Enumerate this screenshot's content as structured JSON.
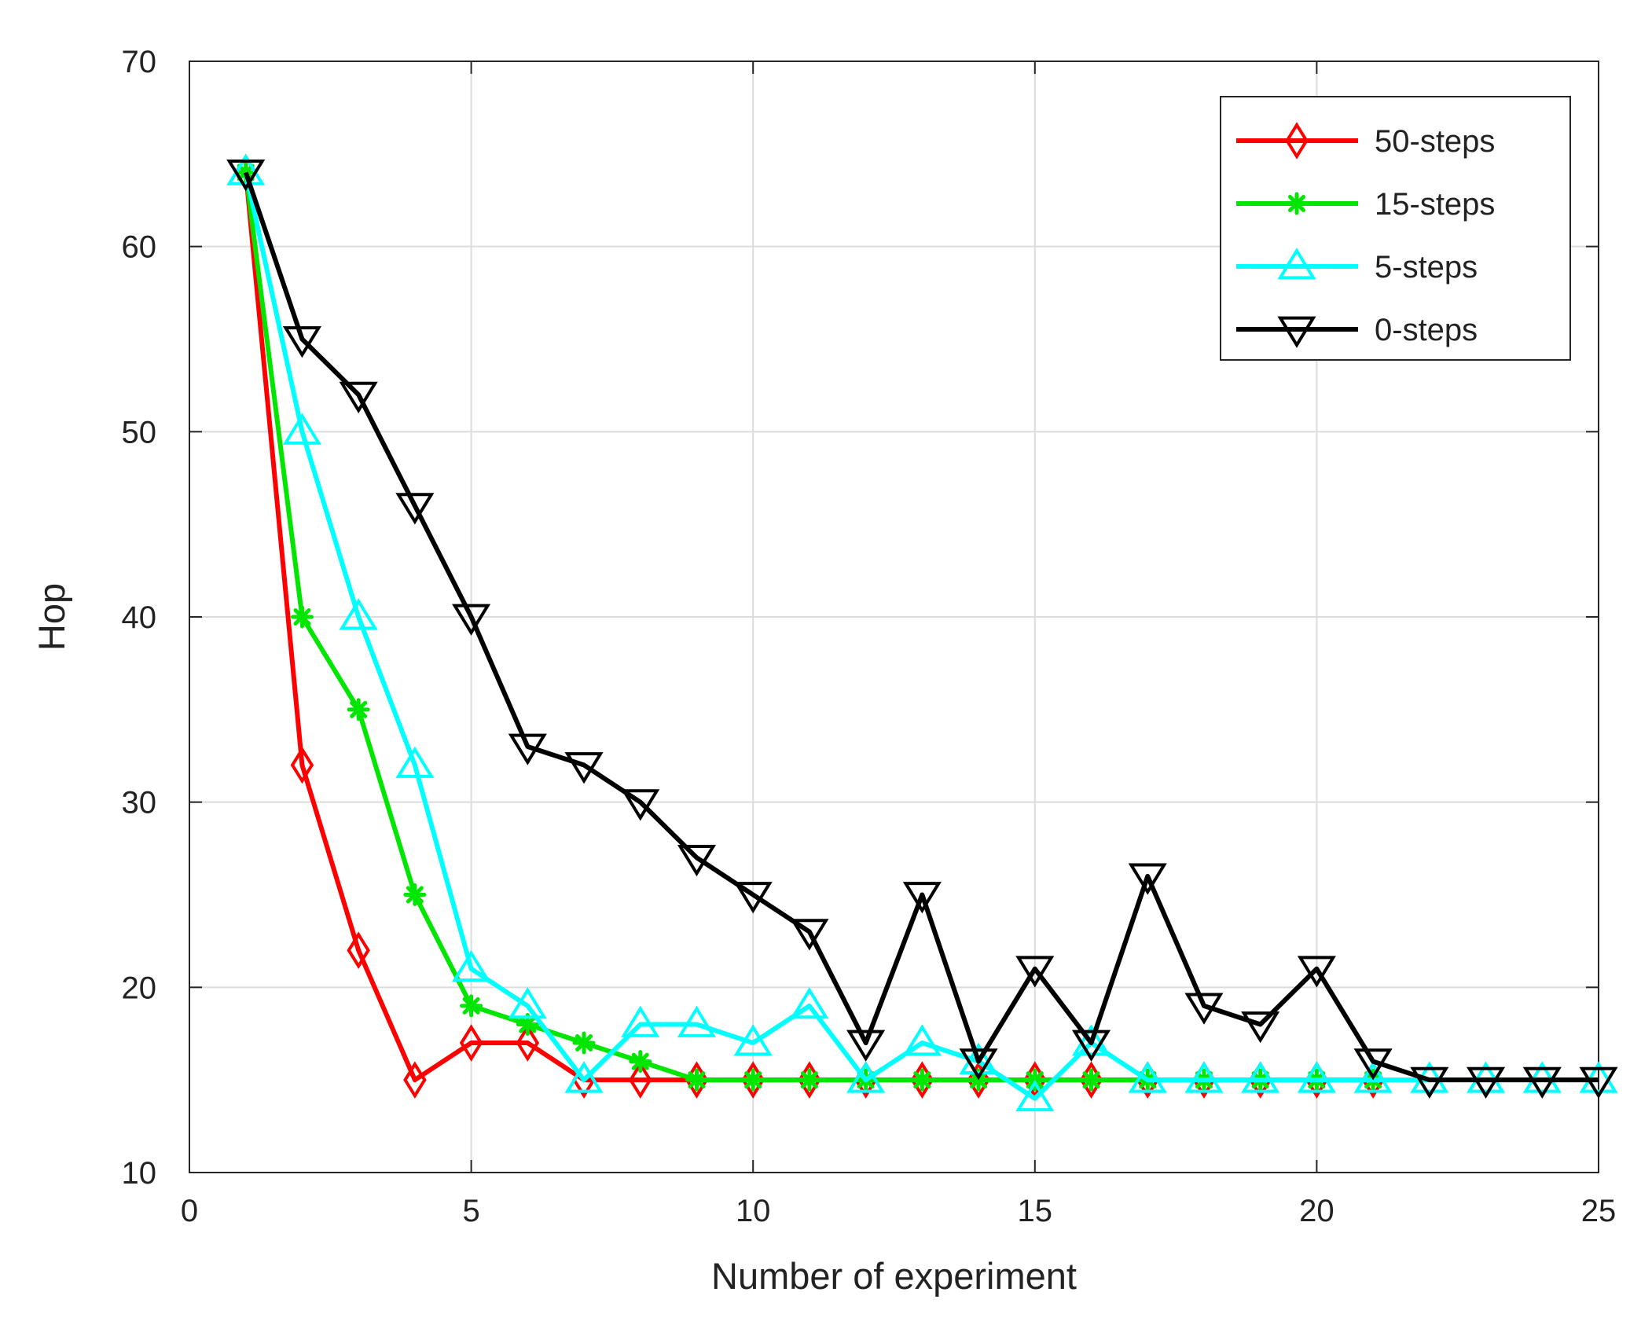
{
  "chart_data": {
    "type": "line",
    "title": "",
    "xlabel": "Number of experiment",
    "ylabel": "Hop",
    "xlim": [
      0,
      25
    ],
    "ylim": [
      10,
      70
    ],
    "xticks": [
      0,
      5,
      10,
      15,
      20,
      25
    ],
    "yticks": [
      10,
      20,
      30,
      40,
      50,
      60,
      70
    ],
    "grid": true,
    "legend_position": "top-right",
    "x": [
      1,
      2,
      3,
      4,
      5,
      6,
      7,
      8,
      9,
      10,
      11,
      12,
      13,
      14,
      15,
      16,
      17,
      18,
      19,
      20,
      21,
      22,
      23,
      24,
      25
    ],
    "series": [
      {
        "name": "50-steps",
        "color": "#ff0000",
        "marker": "diamond",
        "values": [
          64,
          32,
          22,
          15,
          17,
          17,
          15,
          15,
          15,
          15,
          15,
          15,
          15,
          15,
          15,
          15,
          15,
          15,
          15,
          15,
          15,
          null,
          null,
          null,
          null
        ]
      },
      {
        "name": "15-steps",
        "color": "#00e600",
        "marker": "asterisk",
        "values": [
          64,
          40,
          35,
          25,
          19,
          18,
          17,
          16,
          15,
          15,
          15,
          15,
          15,
          15,
          15,
          15,
          15,
          15,
          15,
          15,
          15,
          null,
          null,
          null,
          null
        ]
      },
      {
        "name": "5-steps",
        "color": "#00ffff",
        "marker": "triangle-up",
        "values": [
          64,
          50,
          40,
          32,
          21,
          19,
          15,
          18,
          18,
          17,
          19,
          15,
          17,
          16,
          14,
          17,
          15,
          15,
          15,
          15,
          15,
          15,
          15,
          15,
          15
        ]
      },
      {
        "name": "0-steps",
        "color": "#000000",
        "marker": "triangle-down",
        "values": [
          64,
          55,
          52,
          46,
          40,
          33,
          32,
          30,
          27,
          25,
          23,
          17,
          25,
          16,
          21,
          17,
          26,
          19,
          18,
          21,
          16,
          15,
          15,
          15,
          15
        ]
      }
    ]
  }
}
